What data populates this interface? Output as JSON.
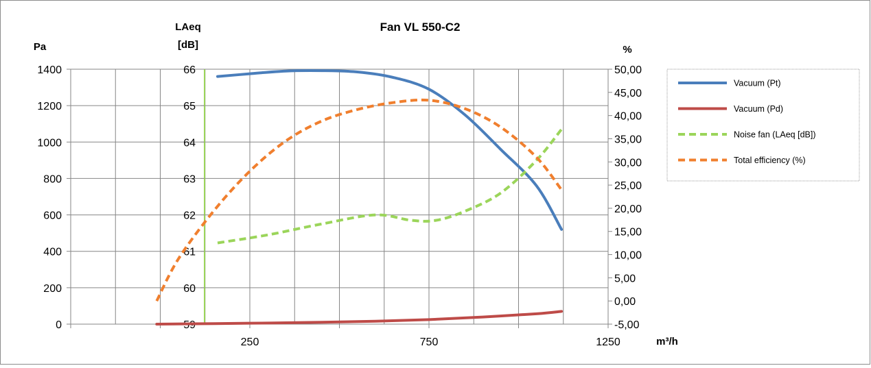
{
  "chart_data": {
    "type": "line",
    "title": "Fan VL 550-C2",
    "xlabel": "m³/h",
    "xlim": [
      -250,
      1250
    ],
    "x_ticks": [
      250,
      750,
      1250
    ],
    "x_tick_labels": [
      "250",
      "750",
      "1250"
    ],
    "grid": true,
    "legend_position": "right",
    "axes": {
      "left_pa": {
        "label": "Pa",
        "ylim": [
          0,
          1400
        ],
        "ticks": [
          0,
          200,
          400,
          600,
          800,
          1000,
          1200,
          1400
        ],
        "tick_labels": [
          "0",
          "200",
          "400",
          "600",
          "800",
          "1000",
          "1200",
          "1400"
        ]
      },
      "left_laeq": {
        "label_line1": "LAeq",
        "label_line2": "[dB]",
        "ylim": [
          59,
          66
        ],
        "ticks": [
          59,
          60,
          61,
          62,
          63,
          64,
          65,
          66
        ],
        "tick_labels": [
          "59",
          "60",
          "61",
          "62",
          "63",
          "64",
          "65",
          "66"
        ]
      },
      "right_percent": {
        "label": "%",
        "ylim": [
          -5,
          50
        ],
        "ticks": [
          -5,
          0,
          5,
          10,
          15,
          20,
          25,
          30,
          35,
          40,
          45,
          50
        ],
        "tick_labels": [
          "-5,00",
          "0,00",
          "5,00",
          "10,00",
          "15,00",
          "20,00",
          "25,00",
          "30,00",
          "35,00",
          "40,00",
          "45,00",
          "50,00"
        ]
      }
    },
    "series": [
      {
        "name": "Vacuum (Pt)",
        "axis": "left_pa",
        "color": "#4A7EBB",
        "dash": "solid",
        "x": [
          160,
          250,
          350,
          450,
          550,
          650,
          750,
          850,
          950,
          1050,
          1120
        ],
        "values": [
          1360,
          1375,
          1390,
          1392,
          1385,
          1355,
          1290,
          1150,
          960,
          760,
          520
        ]
      },
      {
        "name": "Vacuum (Pd)",
        "axis": "left_pa",
        "color": "#BE4B48",
        "dash": "solid",
        "x": [
          -10,
          150,
          300,
          450,
          600,
          750,
          900,
          1050,
          1120
        ],
        "values": [
          0,
          3,
          6,
          10,
          16,
          25,
          39,
          57,
          70
        ]
      },
      {
        "name": "Noise fan (LAeq [dB])",
        "axis": "left_laeq",
        "color": "#9BD55A",
        "dash": "dashed",
        "x": [
          160,
          300,
          450,
          600,
          700,
          770,
          850,
          950,
          1050,
          1120
        ],
        "values": [
          61.23,
          61.45,
          61.75,
          62.0,
          61.85,
          61.85,
          62.1,
          62.6,
          63.5,
          64.35
        ]
      },
      {
        "name": "Total efficiency (%)",
        "axis": "right_percent",
        "color": "#F07F2E",
        "dash": "dashed",
        "x": [
          -10,
          50,
          150,
          250,
          350,
          450,
          550,
          650,
          750,
          850,
          950,
          1050,
          1120
        ],
        "values": [
          0,
          9,
          19.5,
          28,
          34.5,
          38.8,
          41.3,
          42.8,
          43.3,
          41.5,
          37.5,
          31,
          24
        ]
      }
    ]
  }
}
